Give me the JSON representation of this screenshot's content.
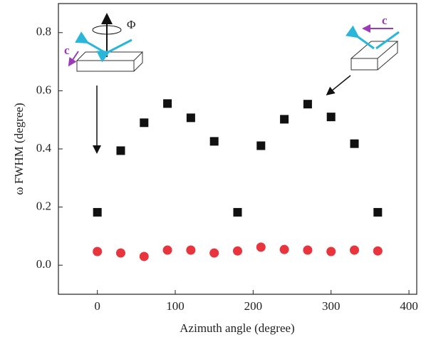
{
  "chart_data": {
    "type": "scatter",
    "xlabel": "Azimuth angle (degree)",
    "ylabel": "ω FWHM (degree)",
    "x": [
      0,
      30,
      60,
      90,
      120,
      150,
      180,
      210,
      240,
      270,
      300,
      330,
      360
    ],
    "series": [
      {
        "color": "#111111",
        "marker": "square",
        "values": [
          0.182,
          0.394,
          0.49,
          0.556,
          0.507,
          0.426,
          0.182,
          0.411,
          0.502,
          0.554,
          0.51,
          0.418,
          0.182
        ]
      },
      {
        "color": "#e8343c",
        "marker": "circle",
        "values": [
          0.047,
          0.042,
          0.03,
          0.052,
          0.052,
          0.042,
          0.049,
          0.062,
          0.054,
          0.052,
          0.047,
          0.052,
          0.049
        ]
      }
    ],
    "xlim": [
      -50,
      410
    ],
    "ylim": [
      -0.1,
      0.9
    ],
    "xticks": [
      0,
      100,
      200,
      300,
      400
    ],
    "yticks": [
      {
        "value": 0,
        "label": "0.0"
      },
      0.2,
      0.4,
      0.6,
      0.8
    ],
    "annotations": [
      "Φ",
      "c",
      "c"
    ]
  }
}
